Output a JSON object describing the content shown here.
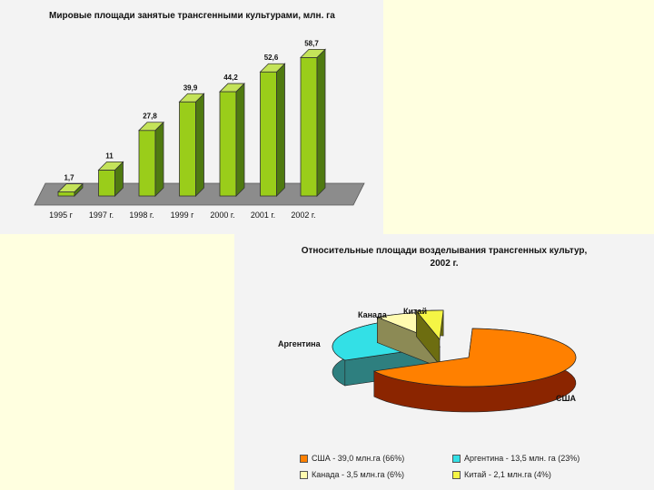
{
  "chart_data": [
    {
      "type": "bar",
      "title": "Мировые площади занятые трансгенными культурами, млн. га",
      "categories": [
        "1995 г",
        "1997 г.",
        "1998 г.",
        "1999 г",
        "2000 г.",
        "2001 г.",
        "2002 г."
      ],
      "values": [
        1.7,
        11,
        27.8,
        39.9,
        44.2,
        52.6,
        58.7
      ],
      "value_labels": [
        "1,7",
        "11",
        "27,8",
        "39,9",
        "44,2",
        "52,6",
        "58,7"
      ],
      "colors": {
        "front": "#9acd1a",
        "side": "#4f7a10",
        "top": "#c4e35a",
        "floor": "#8c8c8c"
      },
      "ylim": [
        0,
        60
      ],
      "grid": false,
      "legend": "none"
    },
    {
      "type": "pie",
      "title_line1": "Относительные площади возделывания трансгенных культур,",
      "title_line2": "2002 г.",
      "slices": [
        {
          "label": "США",
          "percent": 66,
          "color": "#ff8000",
          "side": "#8b2500"
        },
        {
          "label": "Аргентина",
          "percent": 23,
          "color": "#33e0e6",
          "side": "#2e7f7f"
        },
        {
          "label": "Канада",
          "percent": 6,
          "color": "#fffbb0",
          "side": "#8c8a55"
        },
        {
          "label": "Китай",
          "percent": 4,
          "color": "#f5f545",
          "side": "#6d6d10"
        }
      ],
      "legend_entries": [
        {
          "text": "США - 39,0 млн.га (66%)",
          "color": "#ff8000"
        },
        {
          "text": "Аргентина - 13,5 млн. га (23%)",
          "color": "#33e0e6"
        },
        {
          "text": "Канада - 3,5 млн.га (6%)",
          "color": "#fffbb0"
        },
        {
          "text": "Китай - 2,1 млн.га (4%)",
          "color": "#f5f545"
        }
      ],
      "legend": "bottom"
    }
  ]
}
